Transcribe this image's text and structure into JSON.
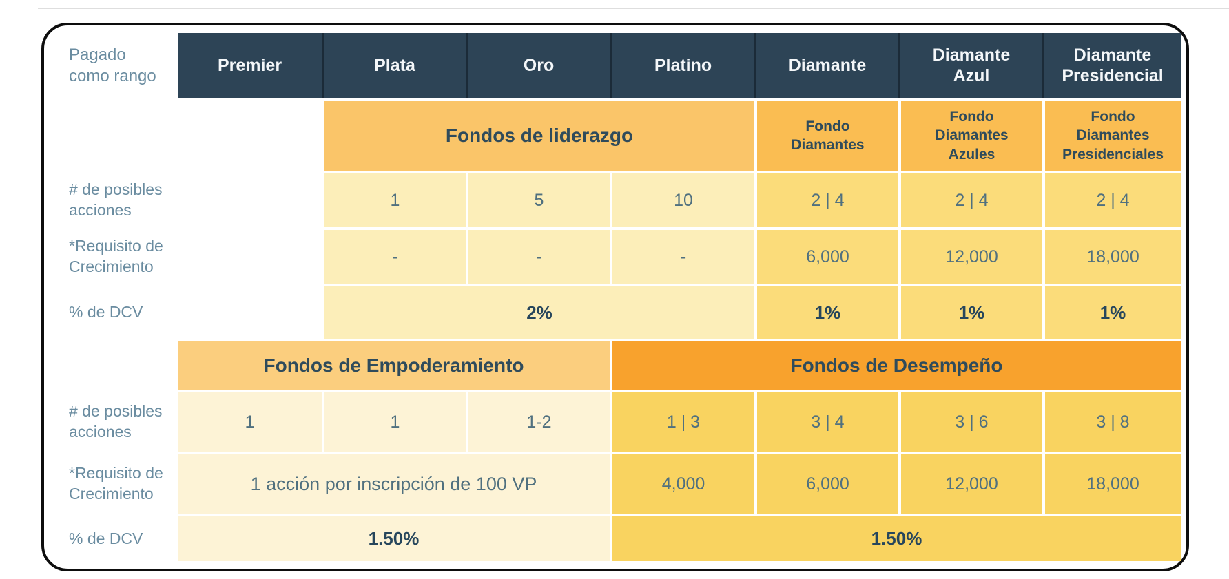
{
  "colors": {
    "header_bg": "#2d4456",
    "header_divider": "#1b2b38",
    "header_text": "#f4f7f9",
    "band_liderazgo": "#fac569",
    "band_fund_diamond": "#fabd52",
    "band_empoderamiento": "#fbce7e",
    "band_desempeno": "#f8a22d",
    "cell_pale_yellow": "#fceeb9",
    "cell_gold_light": "#fbdc7a",
    "cell_cream": "#fdf3d6",
    "cell_gold": "#f9d360",
    "label_text": "#6a8ca0",
    "value_text": "#50707f",
    "value_bold_text": "#27465c",
    "frame_border": "#0d0d0d"
  },
  "corner": {
    "label": "Pagado\ncomo rango"
  },
  "ranks": [
    "Premier",
    "Plata",
    "Oro",
    "Platino",
    "Diamante",
    "Diamante\nAzul",
    "Diamante\nPresidencial"
  ],
  "top": {
    "liderazgo_header": "Fondos de liderazgo",
    "diamond_fund_headers": [
      "Fondo\nDiamantes",
      "Fondo\nDiamantes\nAzules",
      "Fondo\nDiamantes\nPresidenciales"
    ],
    "acciones": {
      "label": "# de posibles\nacciones",
      "plata": "1",
      "oro": "5",
      "platino": "10",
      "diamante": "2 | 4",
      "diamante_azul": "2 | 4",
      "diamante_presidencial": "2 | 4"
    },
    "requisito": {
      "label": "*Requisito de\nCrecimiento",
      "plata": "-",
      "oro": "-",
      "platino": "-",
      "diamante": "6,000",
      "diamante_azul": "12,000",
      "diamante_presidencial": "18,000"
    },
    "dcv": {
      "label": "% de DCV",
      "liderazgo_span": "2%",
      "diamante": "1%",
      "diamante_azul": "1%",
      "diamante_presidencial": "1%"
    }
  },
  "bottom": {
    "empoderamiento_header": "Fondos de Empoderamiento",
    "desempeno_header": "Fondos de Desempeño",
    "acciones": {
      "label": "# de posibles\nacciones",
      "premier": "1",
      "plata": "1",
      "oro": "1-2",
      "platino": "1 | 3",
      "diamante": "3 | 4",
      "diamante_azul": "3 | 6",
      "diamante_presidencial": "3 | 8"
    },
    "requisito": {
      "label": "*Requisito de\nCrecimiento",
      "left_span": "1 acción por inscripción de 100 VP",
      "platino": "4,000",
      "diamante": "6,000",
      "diamante_azul": "12,000",
      "diamante_presidencial": "18,000"
    },
    "dcv": {
      "label": "% de DCV",
      "left_span": "1.50%",
      "right_span": "1.50%"
    }
  }
}
